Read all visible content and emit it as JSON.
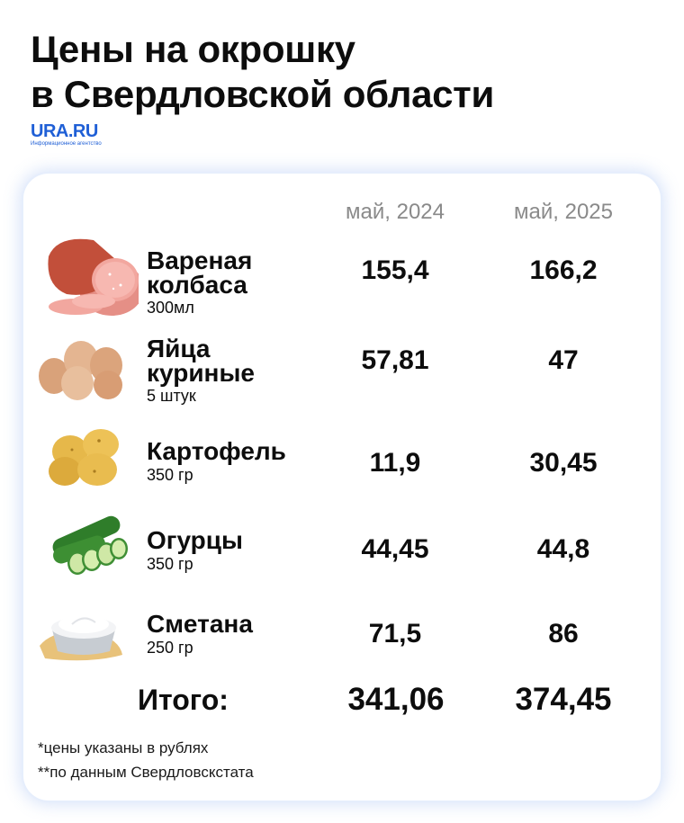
{
  "title_line1": "Цены на окрошку",
  "title_line2": "в Свердловской области",
  "logo": {
    "name": "URA.RU",
    "tagline": "Информационное агентство"
  },
  "chart_data": {
    "type": "table",
    "columns": [
      "май, 2024",
      "май, 2025"
    ],
    "rows": [
      {
        "name_line1": "Вареная",
        "name_line2": "колбаса",
        "unit": "300мл",
        "icon": "sausage-icon",
        "values": [
          "155,4",
          "166,2"
        ]
      },
      {
        "name_line1": "Яйца",
        "name_line2": "куриные",
        "unit": "5 штук",
        "icon": "eggs-icon",
        "values": [
          "57,81",
          "47"
        ]
      },
      {
        "name_line1": "Картофель",
        "name_line2": "",
        "unit": "350 гр",
        "icon": "potatoes-icon",
        "values": [
          "11,9",
          "30,45"
        ]
      },
      {
        "name_line1": "Огурцы",
        "name_line2": "",
        "unit": "350 гр",
        "icon": "cucumbers-icon",
        "values": [
          "44,45",
          "44,8"
        ]
      },
      {
        "name_line1": "Сметана",
        "name_line2": "",
        "unit": "250 гр",
        "icon": "sour-cream-icon",
        "values": [
          "71,5",
          "86"
        ]
      }
    ],
    "total_label": "Итого:",
    "totals": [
      "341,06",
      "374,45"
    ]
  },
  "notes": [
    "*цены указаны в рублях",
    "**по данным Свердловскстата"
  ],
  "colors": {
    "brand": "#1f5fd6",
    "card_glow": "#b9cdf3"
  }
}
